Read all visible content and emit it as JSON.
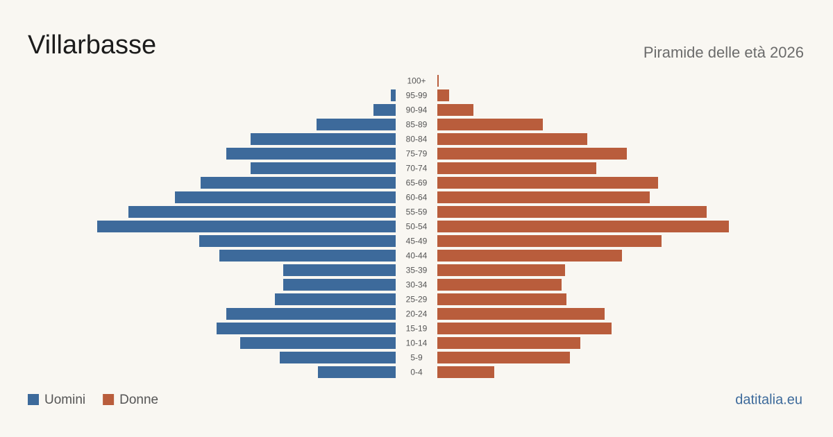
{
  "chart_data": {
    "type": "pyramid",
    "title": "Villarbasse",
    "subtitle": "Piramide delle età 2026",
    "source": "datitalia.eu",
    "categories": [
      "100+",
      "95-99",
      "90-94",
      "85-89",
      "80-84",
      "75-79",
      "70-74",
      "65-69",
      "60-64",
      "55-59",
      "50-54",
      "45-49",
      "40-44",
      "35-39",
      "30-34",
      "25-29",
      "20-24",
      "15-19",
      "10-14",
      "5-9",
      "0-4"
    ],
    "series": [
      {
        "name": "Uomini",
        "color": "#3d6a9b",
        "values": [
          0,
          7,
          32,
          114,
          209,
          244,
          209,
          281,
          318,
          385,
          430,
          283,
          254,
          162,
          162,
          174,
          244,
          258,
          224,
          167,
          112
        ]
      },
      {
        "name": "Donne",
        "color": "#b95d3c",
        "values": [
          2,
          17,
          52,
          152,
          216,
          273,
          229,
          318,
          306,
          388,
          420,
          323,
          266,
          184,
          179,
          186,
          241,
          251,
          206,
          191,
          82
        ]
      }
    ]
  }
}
